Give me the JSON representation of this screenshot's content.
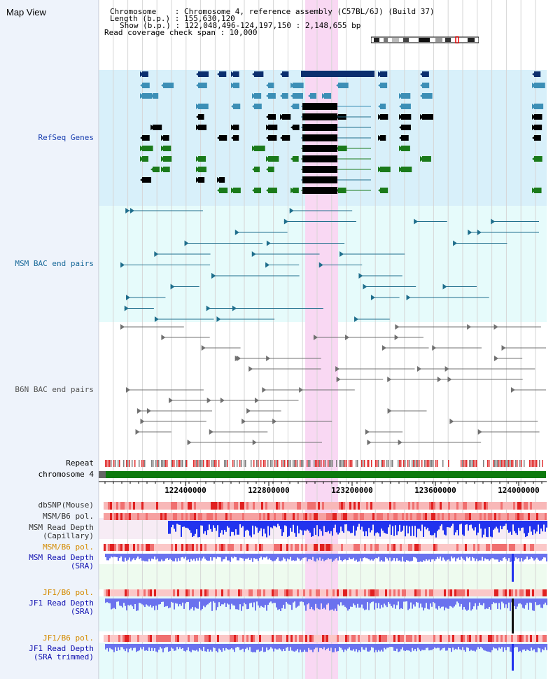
{
  "page": {
    "title": "Map View"
  },
  "header": {
    "chromosome_line": "Chromosome    : Chromosome 4, reference assembly (C57BL/6J) (Build 37)",
    "length_line": "Length (b.p.) : 155,630,120",
    "show_line": "Show (b.p.) : 122,048,496-124,197,150 : 2,148,655 bp",
    "coverage_line": "Read coverage check span : 10,000"
  },
  "tracks": {
    "refseq": "RefSeq Genes",
    "msm_bac": "MSM BAC end pairs",
    "b6n_bac": "B6N BAC end pairs",
    "repeat": "Repeat",
    "chromosome": "chromosome 4",
    "dbsnp": "dbSNP(Mouse)",
    "msm_b6_pol_1": "MSM/B6 pol.",
    "msm_read_depth_cap_1": "MSM Read Depth",
    "msm_read_depth_cap_2": "(Capillary)",
    "msm_b6_pol_2": "MSM/B6 pol.",
    "msm_read_depth_sra_1": "MSM Read Depth",
    "msm_read_depth_sra_2": "(SRA)",
    "jf1_b6_pol_1": "JF1/B6 pol.",
    "jf1_read_depth_sra_1": "JF1 Read Depth",
    "jf1_read_depth_sra_2": "(SRA)",
    "jf1_b6_pol_2": "JF1/B6 pol.",
    "jf1_read_depth_trim_1": "JF1 Read Depth",
    "jf1_read_depth_trim_2": "(SRA trimmed)"
  },
  "axis": {
    "ticks": [
      "122400000",
      "122800000",
      "123200000",
      "123600000",
      "124000000"
    ]
  },
  "colors": {
    "refseq_bg": "#d8f0fa",
    "msm_bg": "#e6fbfb",
    "highlight": "#f9d8f3",
    "msm_track": "#1f6e8c",
    "b6n_track": "#707070",
    "gene_navy": "#0b2f6e",
    "gene_cyan": "#3c8fb6",
    "gene_green": "#1a7a1a",
    "depth_blue": "#2233ee",
    "depth_violet": "#6a72ee",
    "orange_label": "#d48a00",
    "blue_label": "#1010b0"
  }
}
